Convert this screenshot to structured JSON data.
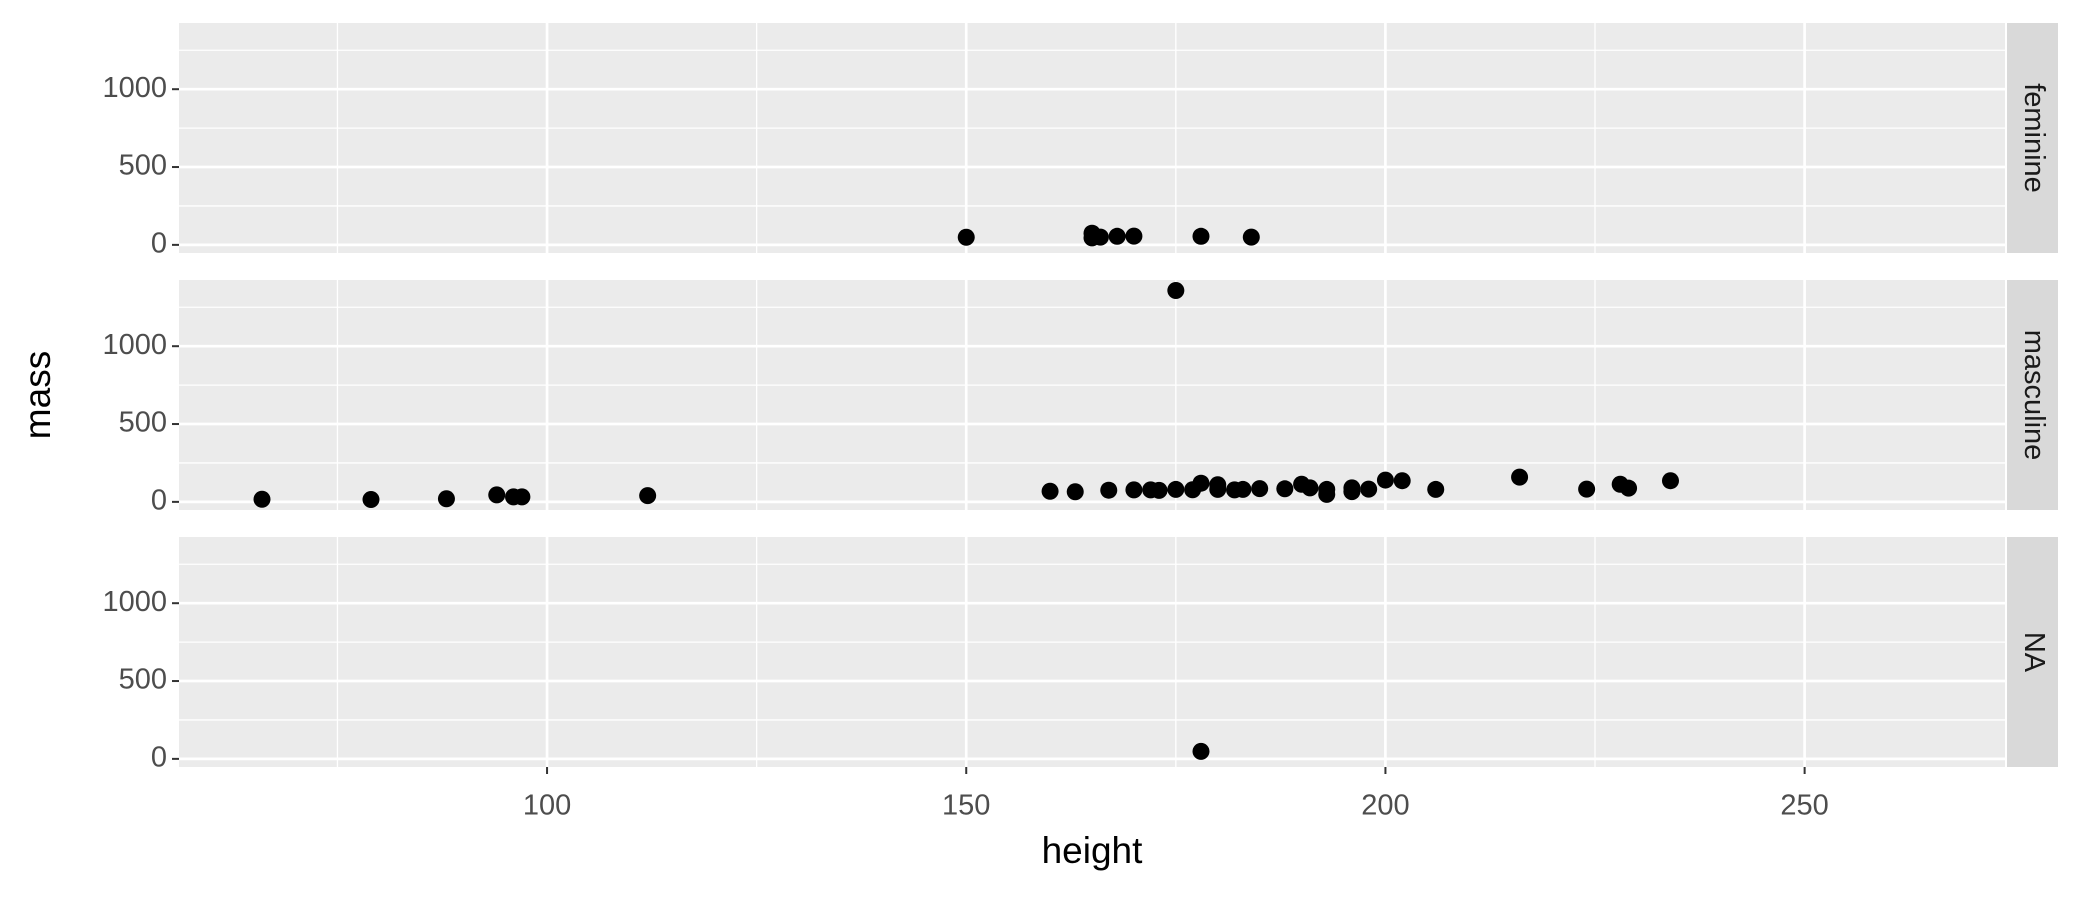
{
  "chart_data": {
    "type": "scatter",
    "x_label": "height",
    "y_label": "mass",
    "xlim": [
      56.1,
      273.9
    ],
    "xticks": [
      100,
      150,
      200,
      250
    ],
    "xminor": [
      75,
      125,
      175,
      225
    ],
    "ylim": [
      -52.2,
      1425.2
    ],
    "yticks": [
      0,
      500,
      1000
    ],
    "yminor": [
      250,
      750,
      1250
    ],
    "grid": true,
    "color": "#000000",
    "facets": [
      {
        "name": "feminine",
        "x": [
          150,
          165,
          165,
          166,
          168,
          170,
          178,
          184
        ],
        "y": [
          49,
          75,
          45,
          50,
          55,
          56.2,
          55,
          50
        ]
      },
      {
        "name": "masculine",
        "x": [
          66,
          79,
          88,
          94,
          96,
          97,
          112,
          160,
          163,
          167,
          170,
          172,
          173,
          175,
          175,
          177,
          178,
          180,
          180,
          182,
          183,
          185,
          188,
          190,
          191,
          193,
          193,
          196,
          196,
          198,
          200,
          202,
          206,
          216,
          224,
          228,
          229,
          234
        ],
        "y": [
          17,
          15,
          20,
          45,
          32,
          32,
          40,
          68,
          65,
          75,
          77,
          77,
          74,
          80,
          1358,
          78,
          120,
          110,
          80,
          77,
          80,
          85,
          84,
          113,
          90,
          80,
          48,
          66,
          90,
          82,
          140,
          136,
          80,
          159,
          82,
          113,
          88,
          136
        ]
      },
      {
        "name": "NA",
        "x": [
          178
        ],
        "y": [
          48
        ]
      }
    ]
  }
}
